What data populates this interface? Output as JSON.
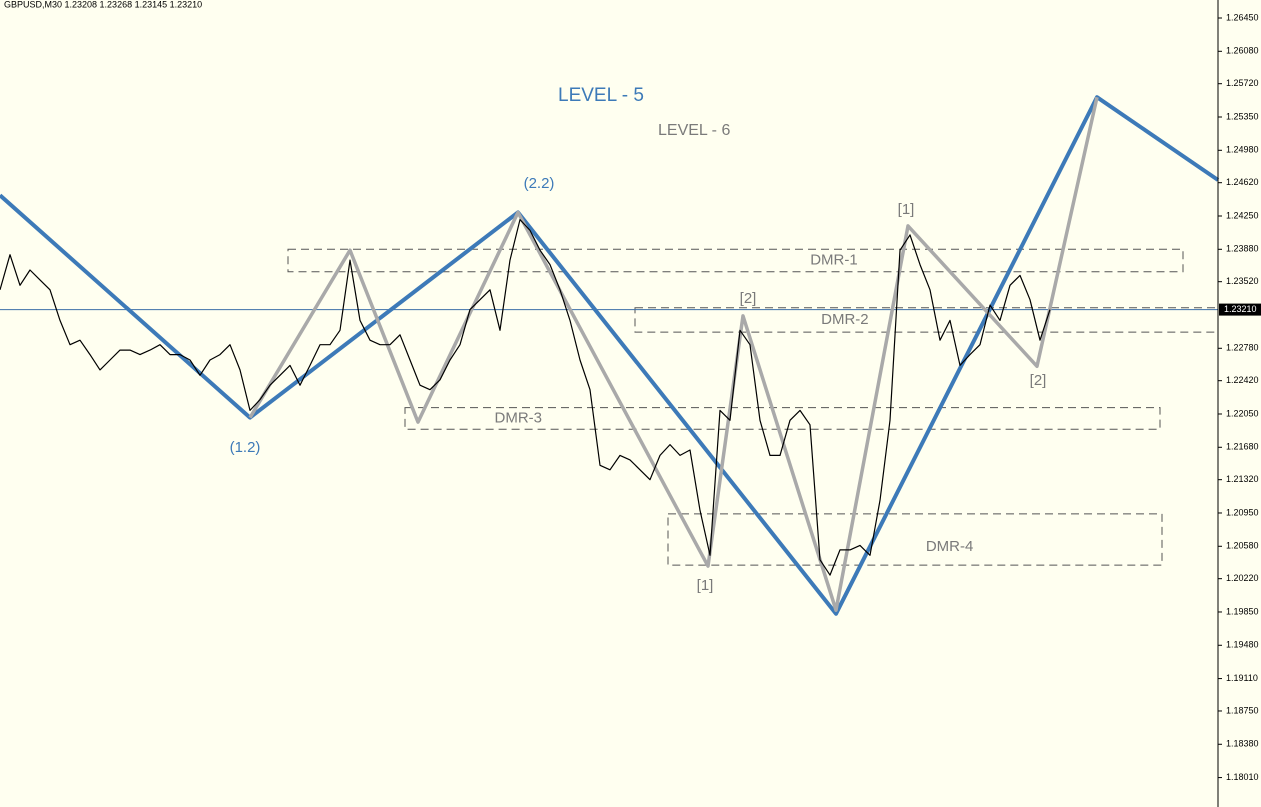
{
  "chart_data": {
    "type": "line",
    "title": "GBPUSD,M30  1.23208 1.23268 1.23145 1.23210",
    "ylim": [
      1.17683,
      1.2665
    ],
    "xlim": [
      0,
      121.8
    ],
    "yticks": [
      {
        "value": 1.2645,
        "label": "1.26450"
      },
      {
        "value": 1.2608,
        "label": "1.26080"
      },
      {
        "value": 1.2572,
        "label": "1.25720"
      },
      {
        "value": 1.2535,
        "label": "1.25350"
      },
      {
        "value": 1.2498,
        "label": "1.24980"
      },
      {
        "value": 1.2462,
        "label": "1.24620"
      },
      {
        "value": 1.2425,
        "label": "1.24250"
      },
      {
        "value": 1.2388,
        "label": "1.23880"
      },
      {
        "value": 1.2352,
        "label": "1.23520"
      },
      {
        "value": 1.2278,
        "label": "1.22780"
      },
      {
        "value": 1.2242,
        "label": "1.22420"
      },
      {
        "value": 1.2205,
        "label": "1.22050"
      },
      {
        "value": 1.2168,
        "label": "1.21680"
      },
      {
        "value": 1.2132,
        "label": "1.21320"
      },
      {
        "value": 1.2095,
        "label": "1.20950"
      },
      {
        "value": 1.2058,
        "label": "1.20580"
      },
      {
        "value": 1.2022,
        "label": "1.20220"
      },
      {
        "value": 1.1985,
        "label": "1.19850"
      },
      {
        "value": 1.1948,
        "label": "1.19480"
      },
      {
        "value": 1.1911,
        "label": "1.19110"
      },
      {
        "value": 1.1875,
        "label": "1.18750"
      },
      {
        "value": 1.1838,
        "label": "1.18380"
      },
      {
        "value": 1.1801,
        "label": "1.18010"
      }
    ],
    "current_price": {
      "value": 1.2321,
      "label": "1.23210"
    },
    "series": [
      {
        "color": "#000000",
        "values": [
          1.2343,
          1.2382,
          1.2348,
          1.2365,
          1.2354,
          1.2343,
          1.2309,
          1.2282,
          1.2287,
          1.2271,
          1.2254,
          1.2265,
          1.2276,
          1.2276,
          1.2271,
          1.2276,
          1.2282,
          1.2271,
          1.2271,
          1.2265,
          1.2248,
          1.2265,
          1.2271,
          1.2282,
          1.2254,
          1.2209,
          1.2221,
          1.2237,
          1.2248,
          1.2259,
          1.2237,
          1.2259,
          1.2282,
          1.2282,
          1.2298,
          1.2376,
          1.2309,
          1.2287,
          1.2282,
          1.2282,
          1.2293,
          1.2265,
          1.2237,
          1.2232,
          1.2243,
          1.2265,
          1.2282,
          1.2321,
          1.2332,
          1.2343,
          1.2298,
          1.2376,
          1.2421,
          1.2409,
          1.2387,
          1.2371,
          1.2343,
          1.2309,
          1.2265,
          1.2232,
          1.2148,
          1.2143,
          1.2159,
          1.2154,
          1.2143,
          1.2132,
          1.2159,
          1.2171,
          1.2159,
          1.2165,
          1.2098,
          1.2048,
          1.2209,
          1.2198,
          1.2298,
          1.2282,
          1.2198,
          1.2159,
          1.2159,
          1.2198,
          1.2209,
          1.2193,
          1.2043,
          1.2026,
          1.2054,
          1.2054,
          1.2059,
          1.2048,
          1.2109,
          1.2198,
          1.2387,
          1.2404,
          1.2371,
          1.2343,
          1.2287,
          1.2309,
          1.2259,
          1.2271,
          1.2282,
          1.2326,
          1.2309,
          1.2348,
          1.2359,
          1.2332,
          1.2287,
          1.2321
        ]
      }
    ],
    "zigzags": [
      {
        "color": "#3d7ab8",
        "width": 4,
        "x": [
          0,
          25,
          51.8,
          83.6,
          109.7,
          121.8
        ],
        "values": [
          1.2448,
          1.2201,
          1.2429,
          1.1983,
          1.2557,
          1.2465
        ]
      },
      {
        "color": "#a9a9a9",
        "width": 3.5,
        "x": [
          25,
          35,
          41.8,
          51.8,
          70.8,
          74.3,
          83.6,
          90.8,
          103.7,
          109.7
        ],
        "values": [
          1.2201,
          1.2387,
          1.2196,
          1.2429,
          1.2036,
          1.2314,
          1.1987,
          1.2414,
          1.2258,
          1.2557
        ]
      }
    ],
    "zones": [
      {
        "label": "DMR-1",
        "x": [
          28.8,
          118.3
        ],
        "values": [
          1.2388,
          1.2363
        ]
      },
      {
        "label": "DMR-2",
        "x": [
          63.5,
          121.8
        ],
        "values": [
          1.2323,
          1.2296
        ]
      },
      {
        "label": "DMR-3",
        "x": [
          40.5,
          116.0
        ],
        "values": [
          1.2212,
          1.2188
        ]
      },
      {
        "label": "DMR-4",
        "x": [
          66.8,
          116.2
        ],
        "values": [
          1.2094,
          1.2037
        ]
      }
    ],
    "annotations": [
      "LEVEL - 5",
      "LEVEL - 6",
      "(2.2)",
      "(1.2)",
      "[1]",
      "[2]",
      "[1]",
      "[2]"
    ]
  }
}
